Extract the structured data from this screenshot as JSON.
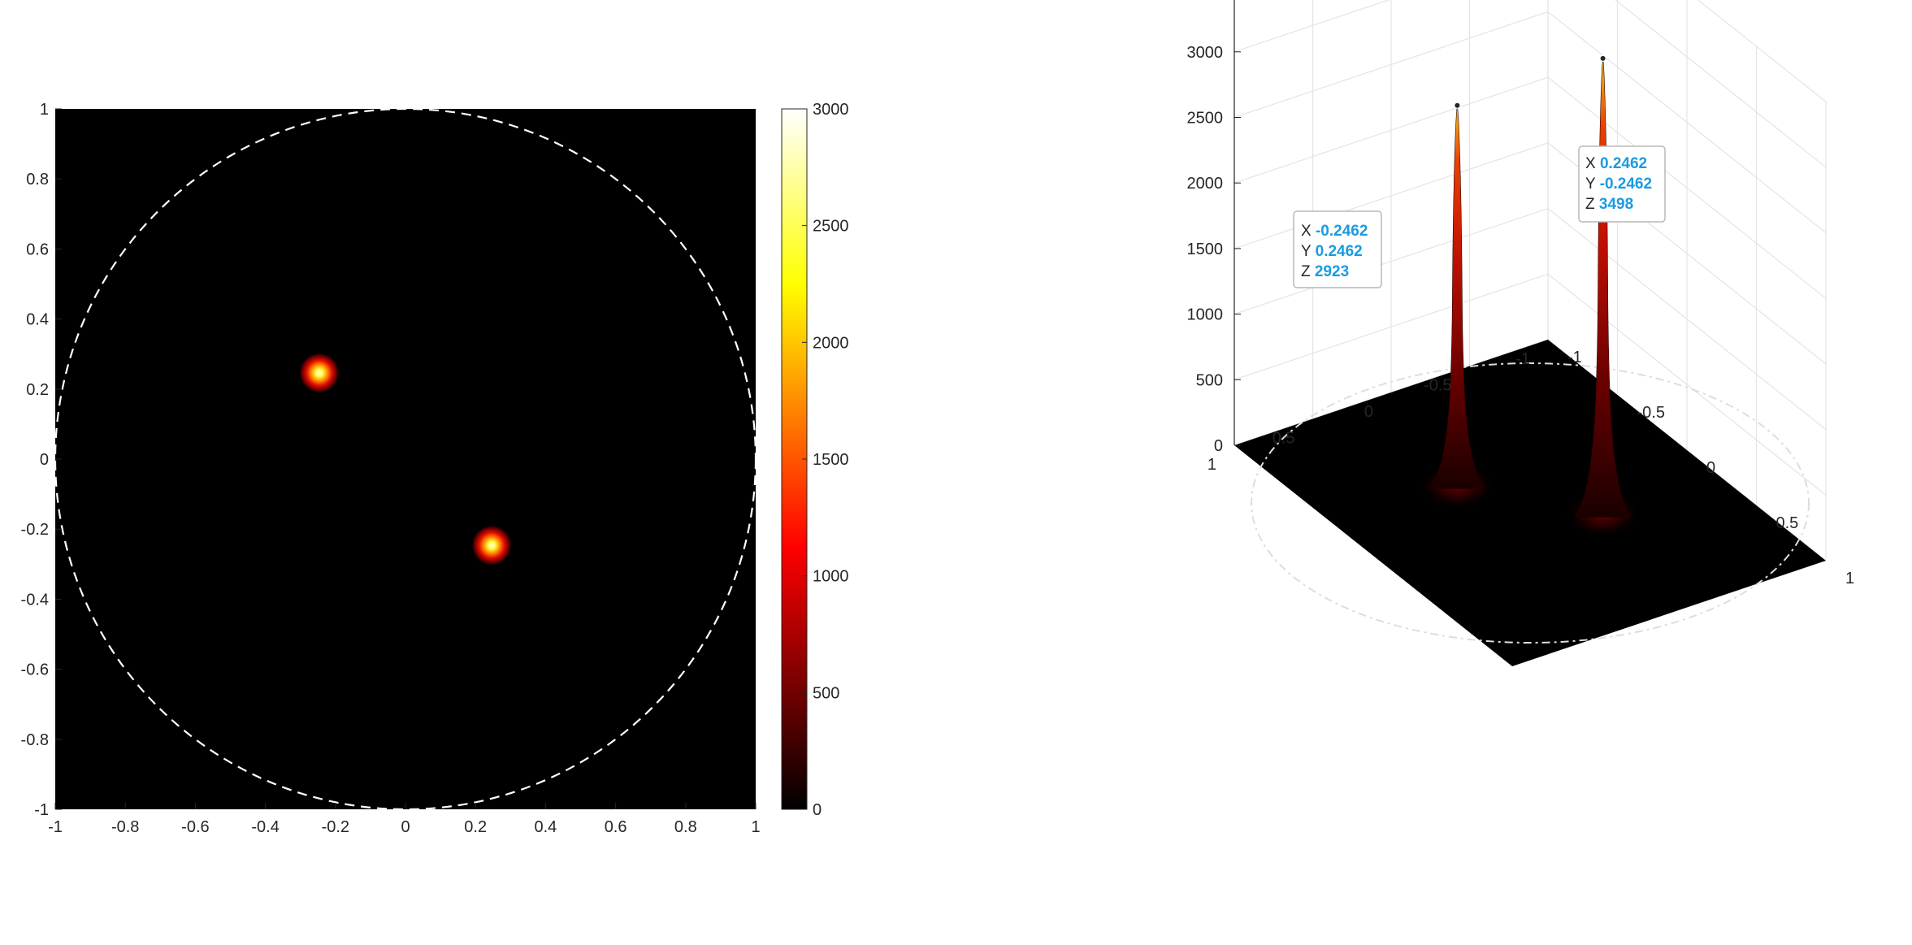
{
  "chart_data": [
    {
      "type": "heatmap",
      "colormap": "hot",
      "xlim": [
        -1,
        1
      ],
      "ylim": [
        -1,
        1
      ],
      "x_ticks": [
        "-1",
        "-0.8",
        "-0.6",
        "-0.4",
        "-0.2",
        "0",
        "0.2",
        "0.4",
        "0.6",
        "0.8",
        "1"
      ],
      "y_ticks": [
        "1",
        "0.8",
        "0.6",
        "0.4",
        "0.2",
        "0",
        "-0.2",
        "-0.4",
        "-0.6",
        "-0.8",
        "-1"
      ],
      "colorbar": {
        "clim": [
          0,
          3000
        ],
        "ticks": [
          "3000",
          "2500",
          "2000",
          "1500",
          "1000",
          "500",
          "0"
        ]
      },
      "peaks": [
        {
          "x": -0.2462,
          "y": 0.2462,
          "z": 2923
        },
        {
          "x": 0.2462,
          "y": -0.2462,
          "z": 3498
        }
      ],
      "boundary_circle": {
        "center": [
          0,
          0
        ],
        "radius": 1,
        "style": "dashed",
        "color": "#ffffff"
      }
    },
    {
      "type": "surface",
      "colormap": "hot",
      "xlim": [
        -1,
        1
      ],
      "ylim": [
        -1,
        1
      ],
      "zlim": [
        0,
        3500
      ],
      "z_ticks": [
        "3000",
        "2500",
        "2000",
        "1500",
        "1000",
        "500",
        "0"
      ],
      "x_ticks": [
        "-1",
        "-0.5",
        "0",
        "0.5",
        "1"
      ],
      "y_ticks": [
        "-1",
        "-0.5",
        "0",
        "0.5",
        "1"
      ],
      "grid": true,
      "boundary_circle": {
        "center": [
          0,
          0
        ],
        "radius": 1,
        "style": "dashed",
        "color": "#ffffff"
      },
      "peaks": [
        {
          "x": -0.2462,
          "y": 0.2462,
          "z": 2923
        },
        {
          "x": 0.2462,
          "y": -0.2462,
          "z": 3498
        }
      ],
      "datatips": [
        {
          "x_label": "X",
          "x_value": "-0.2462",
          "y_label": "Y",
          "y_value": "0.2462",
          "z_label": "Z",
          "z_value": "2923"
        },
        {
          "x_label": "X",
          "x_value": "0.2462",
          "y_label": "Y",
          "y_value": "-0.2462",
          "z_label": "Z",
          "z_value": "3498"
        }
      ]
    }
  ]
}
